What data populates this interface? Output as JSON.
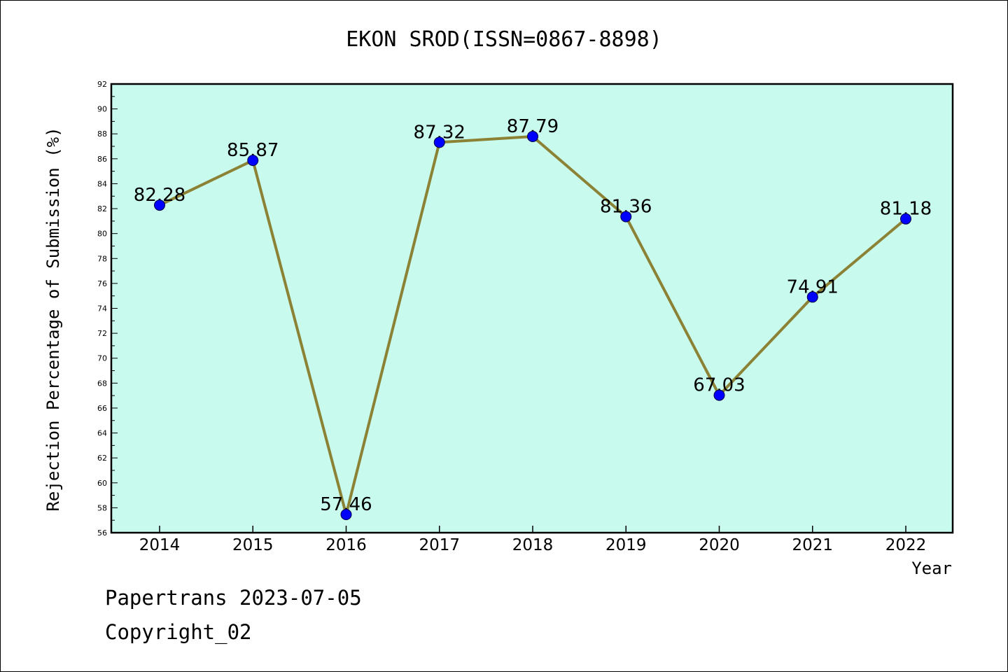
{
  "footer": {
    "line1": "Papertrans 2023-07-05",
    "line2": "Copyright_02"
  },
  "chart_data": {
    "type": "line",
    "title": "EKON SROD(ISSN=0867-8898)",
    "xlabel": "Year",
    "ylabel": "Rejection Percentage of Submission (%)",
    "x": [
      "2014",
      "2015",
      "2016",
      "2017",
      "2018",
      "2019",
      "2020",
      "2021",
      "2022"
    ],
    "series": [
      {
        "values": [
          82.28,
          85.87,
          57.46,
          87.32,
          87.79,
          81.36,
          67.03,
          74.91,
          81.18
        ],
        "labels": [
          "82.28",
          "85.87",
          "57.46",
          "87.32",
          "87.79",
          "81.36",
          "67.03",
          "74.91",
          "81.18"
        ]
      }
    ],
    "ylim": [
      56,
      92
    ],
    "yticks": [
      56,
      58,
      60,
      62,
      64,
      66,
      68,
      70,
      72,
      74,
      76,
      78,
      80,
      82,
      84,
      86,
      88,
      90,
      92
    ],
    "grid": false,
    "colors": {
      "plot_background": "#c8fbee",
      "line": "#8c8235",
      "marker": "#0000ff"
    }
  }
}
